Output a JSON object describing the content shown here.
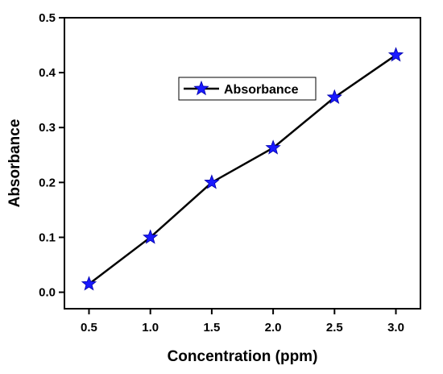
{
  "chart_data": {
    "type": "line",
    "xlabel": "Concentration (ppm)",
    "ylabel": "Absorbance",
    "xlim": [
      0.3,
      3.2
    ],
    "ylim": [
      -0.03,
      0.5
    ],
    "x_ticks": [
      0.5,
      1.0,
      1.5,
      2.0,
      2.5,
      3.0
    ],
    "x_tick_labels": [
      "0.5",
      "1.0",
      "1.5",
      "2.0",
      "2.5",
      "3.0"
    ],
    "y_ticks": [
      0.0,
      0.1,
      0.2,
      0.3,
      0.4,
      0.5
    ],
    "y_tick_labels": [
      "0.0",
      "0.1",
      "0.2",
      "0.3",
      "0.4",
      "0.5"
    ],
    "grid": false,
    "legend_position": "top-center",
    "series": [
      {
        "name": "Absorbance",
        "marker": "star",
        "line_color": "#000000",
        "marker_color": "#1a1aff",
        "x": [
          0.5,
          1.0,
          1.5,
          2.0,
          2.5,
          3.0
        ],
        "y": [
          0.015,
          0.1,
          0.2,
          0.263,
          0.355,
          0.432
        ]
      }
    ]
  }
}
